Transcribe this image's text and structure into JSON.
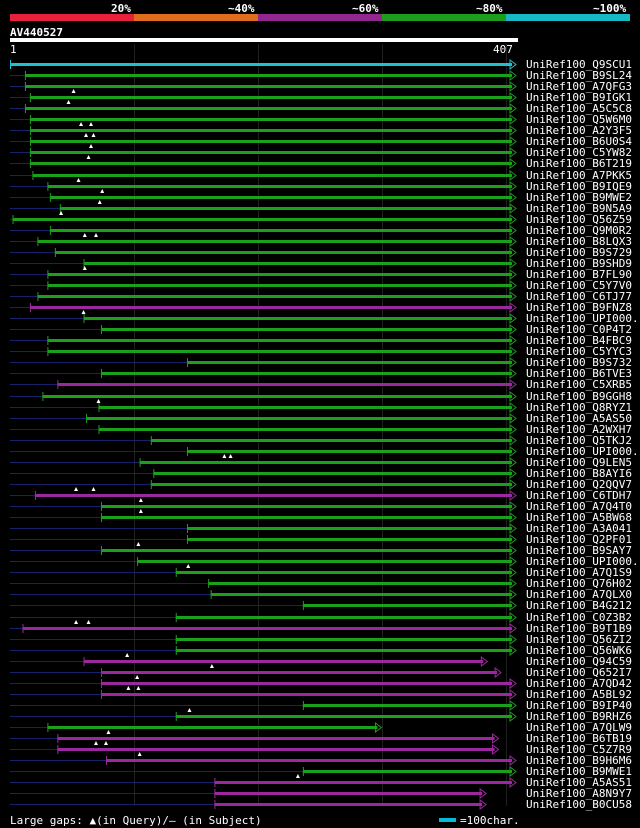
{
  "legend": [
    {
      "label": "20%",
      "color": "#e8203a"
    },
    {
      "label": "~40%",
      "color": "#e06c1c"
    },
    {
      "label": "~60%",
      "color": "#92278f"
    },
    {
      "label": "~80%",
      "color": "#1c9e1c"
    },
    {
      "label": "~100%",
      "color": "#17b8c4"
    }
  ],
  "query": {
    "id": "AV440527",
    "start": "1",
    "end": "407",
    "length": 407
  },
  "colors": {
    "green": "#1aa01a",
    "purple": "#9c28a0",
    "cyan": "#1fc0d0",
    "gap": "#18206a"
  },
  "hits": [
    {
      "name": "UniRef100_Q9SCU1",
      "start": 1,
      "end": 407,
      "color": "cyan",
      "qgaps": []
    },
    {
      "name": "UniRef100_B9SL24",
      "start": 13,
      "end": 407,
      "color": "green",
      "qgaps": []
    },
    {
      "name": "UniRef100_A7QFG3",
      "start": 13,
      "end": 407,
      "color": "green",
      "qgaps": []
    },
    {
      "name": "UniRef100_B9IGK1",
      "start": 17,
      "end": 407,
      "color": "green",
      "qgaps": [
        52
      ]
    },
    {
      "name": "UniRef100_A5C5C8",
      "start": 13,
      "end": 407,
      "color": "green",
      "qgaps": [
        48
      ]
    },
    {
      "name": "UniRef100_Q5W6M0",
      "start": 17,
      "end": 407,
      "color": "green",
      "qgaps": []
    },
    {
      "name": "UniRef100_A2Y3F5",
      "start": 17,
      "end": 407,
      "color": "green",
      "qgaps": [
        58,
        66
      ]
    },
    {
      "name": "UniRef100_B6U0S4",
      "start": 17,
      "end": 407,
      "color": "green",
      "qgaps": [
        62,
        68
      ]
    },
    {
      "name": "UniRef100_C5YW82",
      "start": 17,
      "end": 407,
      "color": "green",
      "qgaps": [
        66
      ]
    },
    {
      "name": "UniRef100_B6T219",
      "start": 17,
      "end": 407,
      "color": "green",
      "qgaps": [
        64
      ]
    },
    {
      "name": "UniRef100_A7PKK5",
      "start": 19,
      "end": 407,
      "color": "green",
      "qgaps": []
    },
    {
      "name": "UniRef100_B9IQE9",
      "start": 31,
      "end": 407,
      "color": "green",
      "qgaps": [
        56
      ]
    },
    {
      "name": "UniRef100_B9MWE2",
      "start": 33,
      "end": 407,
      "color": "green",
      "qgaps": [
        75
      ]
    },
    {
      "name": "UniRef100_B9N5A9",
      "start": 41,
      "end": 407,
      "color": "green",
      "qgaps": [
        73
      ]
    },
    {
      "name": "UniRef100_Q56Z59",
      "start": 3,
      "end": 407,
      "color": "green",
      "qgaps": [
        42
      ]
    },
    {
      "name": "UniRef100_Q9M0R2",
      "start": 33,
      "end": 407,
      "color": "green",
      "qgaps": []
    },
    {
      "name": "UniRef100_B8LQX3",
      "start": 23,
      "end": 407,
      "color": "green",
      "qgaps": [
        61,
        70
      ]
    },
    {
      "name": "UniRef100_B9S729",
      "start": 37,
      "end": 407,
      "color": "green",
      "qgaps": []
    },
    {
      "name": "UniRef100_B9SHD9",
      "start": 60,
      "end": 407,
      "color": "green",
      "qgaps": []
    },
    {
      "name": "UniRef100_B7FL90",
      "start": 31,
      "end": 407,
      "color": "green",
      "qgaps": [
        61
      ]
    },
    {
      "name": "UniRef100_C5Y7V0",
      "start": 31,
      "end": 407,
      "color": "green",
      "qgaps": []
    },
    {
      "name": "UniRef100_C6TJ77",
      "start": 23,
      "end": 407,
      "color": "green",
      "qgaps": []
    },
    {
      "name": "UniRef100_B9FNZ8",
      "start": 17,
      "end": 407,
      "color": "purple",
      "qgaps": []
    },
    {
      "name": "UniRef100_UPI000..",
      "start": 60,
      "end": 407,
      "color": "green",
      "qgaps": [
        60
      ]
    },
    {
      "name": "UniRef100_C0P4T2",
      "start": 74,
      "end": 407,
      "color": "green",
      "qgaps": []
    },
    {
      "name": "UniRef100_B4FBC9",
      "start": 31,
      "end": 407,
      "color": "green",
      "qgaps": []
    },
    {
      "name": "UniRef100_C5YYC3",
      "start": 31,
      "end": 407,
      "color": "green",
      "qgaps": []
    },
    {
      "name": "UniRef100_B9S732",
      "start": 143,
      "end": 407,
      "color": "green",
      "qgaps": []
    },
    {
      "name": "UniRef100_B6TVE3",
      "start": 74,
      "end": 407,
      "color": "green",
      "qgaps": []
    },
    {
      "name": "UniRef100_C5XRB5",
      "start": 39,
      "end": 407,
      "color": "purple",
      "qgaps": []
    },
    {
      "name": "UniRef100_B9GGH8",
      "start": 27,
      "end": 407,
      "color": "green",
      "qgaps": []
    },
    {
      "name": "UniRef100_Q8RYZ1",
      "start": 72,
      "end": 407,
      "color": "green",
      "qgaps": [
        72
      ]
    },
    {
      "name": "UniRef100_A5AS50",
      "start": 62,
      "end": 407,
      "color": "green",
      "qgaps": []
    },
    {
      "name": "UniRef100_A2WXH7",
      "start": 72,
      "end": 407,
      "color": "green",
      "qgaps": []
    },
    {
      "name": "UniRef100_Q5TKJ2",
      "start": 114,
      "end": 407,
      "color": "green",
      "qgaps": []
    },
    {
      "name": "UniRef100_UPI000..",
      "start": 143,
      "end": 407,
      "color": "green",
      "qgaps": []
    },
    {
      "name": "UniRef100_Q9LEN5",
      "start": 105,
      "end": 407,
      "color": "green",
      "qgaps": [
        173,
        178
      ]
    },
    {
      "name": "UniRef100_B8AYI6",
      "start": 116,
      "end": 407,
      "color": "green",
      "qgaps": []
    },
    {
      "name": "UniRef100_Q2QQV7",
      "start": 114,
      "end": 407,
      "color": "green",
      "qgaps": []
    },
    {
      "name": "UniRef100_C6TDH7",
      "start": 21,
      "end": 407,
      "color": "purple",
      "qgaps": [
        54,
        68
      ]
    },
    {
      "name": "UniRef100_A7Q4T0",
      "start": 74,
      "end": 407,
      "color": "green",
      "qgaps": [
        106
      ]
    },
    {
      "name": "UniRef100_A5BW68",
      "start": 74,
      "end": 407,
      "color": "green",
      "qgaps": [
        106
      ]
    },
    {
      "name": "UniRef100_A3A041",
      "start": 143,
      "end": 407,
      "color": "green",
      "qgaps": []
    },
    {
      "name": "UniRef100_Q2PF01",
      "start": 143,
      "end": 407,
      "color": "green",
      "qgaps": []
    },
    {
      "name": "UniRef100_B9SAY7",
      "start": 74,
      "end": 407,
      "color": "green",
      "qgaps": [
        104
      ]
    },
    {
      "name": "UniRef100_UPI000..",
      "start": 103,
      "end": 407,
      "color": "green",
      "qgaps": []
    },
    {
      "name": "UniRef100_A7Q1S9",
      "start": 134,
      "end": 407,
      "color": "green",
      "qgaps": [
        144
      ]
    },
    {
      "name": "UniRef100_Q76H02",
      "start": 160,
      "end": 407,
      "color": "green",
      "qgaps": []
    },
    {
      "name": "UniRef100_A7QLX0",
      "start": 162,
      "end": 407,
      "color": "green",
      "qgaps": []
    },
    {
      "name": "UniRef100_B4G212",
      "start": 236,
      "end": 407,
      "color": "green",
      "qgaps": []
    },
    {
      "name": "UniRef100_C0Z3B2",
      "start": 134,
      "end": 407,
      "color": "green",
      "qgaps": []
    },
    {
      "name": "UniRef100_B9T1B9",
      "start": 11,
      "end": 407,
      "color": "purple",
      "qgaps": [
        54,
        64
      ]
    },
    {
      "name": "UniRef100_Q56ZI2",
      "start": 134,
      "end": 407,
      "color": "green",
      "qgaps": []
    },
    {
      "name": "UniRef100_Q56WK6",
      "start": 134,
      "end": 407,
      "color": "green",
      "qgaps": []
    },
    {
      "name": "UniRef100_Q94C59",
      "start": 60,
      "end": 384,
      "color": "purple",
      "qgaps": [
        95
      ]
    },
    {
      "name": "UniRef100_Q652I7",
      "start": 74,
      "end": 395,
      "color": "purple",
      "qgaps": [
        163
      ]
    },
    {
      "name": "UniRef100_A7QD42",
      "start": 74,
      "end": 407,
      "color": "purple",
      "qgaps": [
        103
      ]
    },
    {
      "name": "UniRef100_A5BL92",
      "start": 74,
      "end": 407,
      "color": "purple",
      "qgaps": [
        96,
        104
      ]
    },
    {
      "name": "UniRef100_B9IP40",
      "start": 236,
      "end": 407,
      "color": "green",
      "qgaps": []
    },
    {
      "name": "UniRef100_B9RHZ6",
      "start": 134,
      "end": 407,
      "color": "green",
      "qgaps": [
        145
      ]
    },
    {
      "name": "UniRef100_A7QLW9",
      "start": 31,
      "end": 299,
      "color": "green",
      "qgaps": []
    },
    {
      "name": "UniRef100_B6TB19",
      "start": 39,
      "end": 393,
      "color": "purple",
      "qgaps": [
        80
      ]
    },
    {
      "name": "UniRef100_C5Z7R9",
      "start": 39,
      "end": 393,
      "color": "purple",
      "qgaps": [
        70,
        78
      ]
    },
    {
      "name": "UniRef100_B9H6M6",
      "start": 78,
      "end": 407,
      "color": "purple",
      "qgaps": [
        105
      ]
    },
    {
      "name": "UniRef100_B9MWE1",
      "start": 236,
      "end": 407,
      "color": "green",
      "qgaps": []
    },
    {
      "name": "UniRef100_A5AS51",
      "start": 165,
      "end": 407,
      "color": "purple",
      "qgaps": [
        232
      ]
    },
    {
      "name": "UniRef100_A8N9Y7",
      "start": 165,
      "end": 383,
      "color": "purple",
      "qgaps": []
    },
    {
      "name": "UniRef100_B0CU58",
      "start": 165,
      "end": 383,
      "color": "purple",
      "qgaps": []
    }
  ],
  "footer": {
    "gaps_text": "Large gaps: ▲(in Query)/— (in Subject)",
    "scale_text": "=100char."
  }
}
